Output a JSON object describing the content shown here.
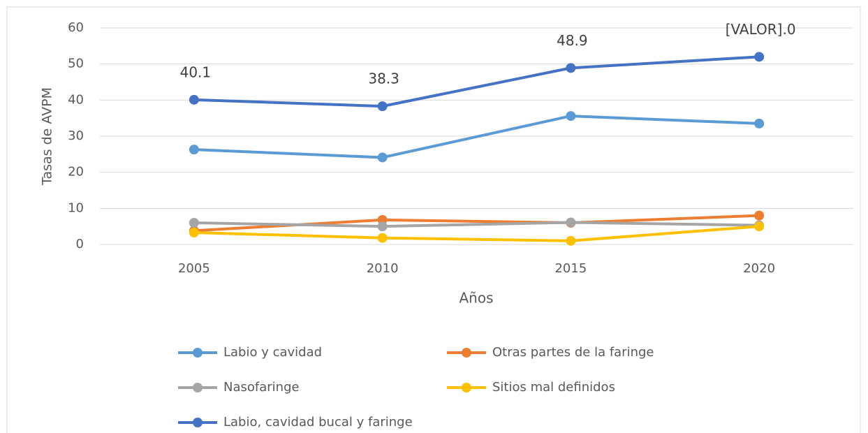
{
  "chart_data": {
    "type": "line",
    "categories": [
      "2005",
      "2010",
      "2015",
      "2020"
    ],
    "xlabel": "Años",
    "ylabel": "Tasas de AVPM",
    "ylim": [
      0,
      60
    ],
    "yticks": [
      0,
      10,
      20,
      30,
      40,
      50,
      60
    ],
    "grid": true,
    "legend": "bottom",
    "series": [
      {
        "name": "Labio y cavidad",
        "color": "#5b9bd5",
        "values": [
          26.3,
          24.1,
          35.6,
          33.5
        ]
      },
      {
        "name": "Otras partes de la faringe",
        "color": "#ed7d31",
        "values": [
          3.8,
          6.8,
          6.0,
          8.0
        ]
      },
      {
        "name": "Nasofaringe",
        "color": "#a5a5a5",
        "values": [
          6.0,
          5.0,
          6.1,
          5.3
        ]
      },
      {
        "name": "Sitios mal definidos",
        "color": "#ffc000",
        "values": [
          3.3,
          1.8,
          1.0,
          5.0
        ]
      },
      {
        "name": "Labio, cavidad bucal y faringe",
        "color": "#4472c4",
        "values": [
          40.1,
          38.3,
          48.9,
          52.0
        ],
        "value_labels": [
          "40.1",
          "38.3",
          "48.9",
          "[VALOR].0"
        ]
      }
    ]
  }
}
